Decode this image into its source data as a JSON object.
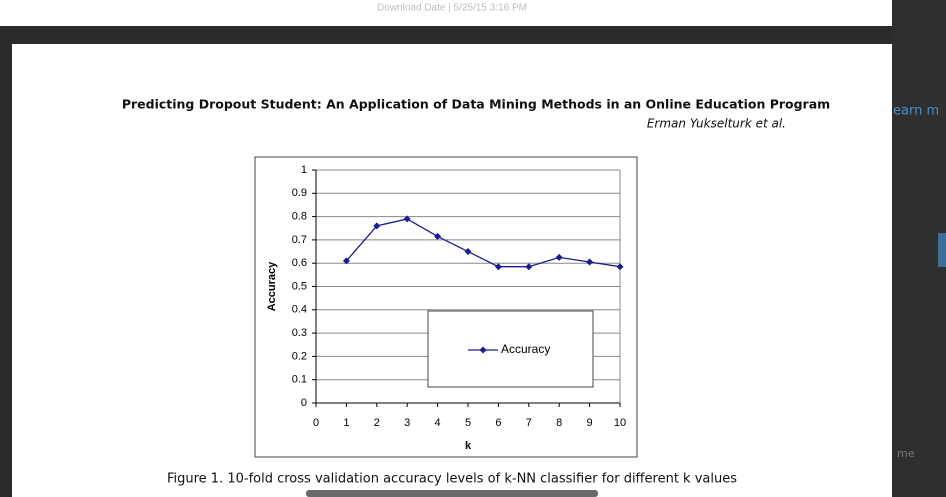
{
  "header": {
    "download_note": "Download Date | 5/25/15 3:16 PM"
  },
  "paper": {
    "running_title": "Predicting Dropout Student: An Application of Data Mining Methods in an Online Education Program",
    "authors": "Erman Yukselturk et al.",
    "caption": "Figure 1. 10-fold cross validation accuracy levels of k-NN classifier for different k values"
  },
  "sidebar": {
    "fragment_top": "earn m",
    "fragment_bottom": "me"
  },
  "chart_data": {
    "type": "line",
    "x_label": "k",
    "y_label": "Accuracy",
    "x": [
      1,
      2,
      3,
      4,
      5,
      6,
      7,
      8,
      9,
      10
    ],
    "series": [
      {
        "name": "Accuracy",
        "color": "#1c1c8c",
        "values": [
          0.61,
          0.76,
          0.79,
          0.715,
          0.65,
          0.585,
          0.585,
          0.625,
          0.605,
          0.585
        ]
      }
    ],
    "xlim": [
      0,
      10
    ],
    "xticks": [
      0,
      1,
      2,
      3,
      4,
      5,
      6,
      7,
      8,
      9,
      10
    ],
    "ylim": [
      0,
      1
    ],
    "yticks": [
      0,
      0.1,
      0.2,
      0.3,
      0.4,
      0.5,
      0.6,
      0.7,
      0.8,
      0.9,
      1
    ],
    "grid": true
  }
}
